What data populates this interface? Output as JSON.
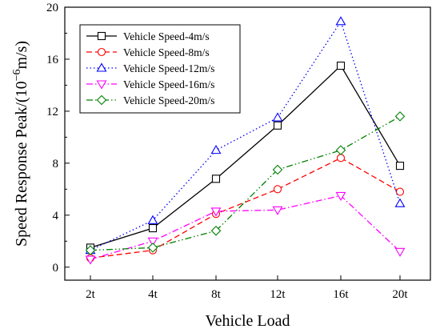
{
  "chart_data": {
    "type": "line",
    "xlabel": "Vehicle Load",
    "ylabel_main": "Speed Response Peak/(10",
    "ylabel_exp": "−6",
    "ylabel_tail": "m/s)",
    "categories": [
      "2t",
      "4t",
      "8t",
      "12t",
      "16t",
      "20t"
    ],
    "ylim": [
      -1,
      20
    ],
    "yticks": [
      0,
      4,
      8,
      12,
      16,
      20
    ],
    "ytick_labels": [
      "0",
      "4",
      "8",
      "12",
      "16",
      "20"
    ],
    "grid": false,
    "legend_position": "top-left",
    "series": [
      {
        "name": "Vehicle Speed-4m/s",
        "values": [
          1.5,
          3.0,
          6.8,
          10.9,
          15.5,
          7.8
        ],
        "color": "#000000",
        "dash": "solid",
        "marker": "square"
      },
      {
        "name": "Vehicle Speed-8m/s",
        "values": [
          0.7,
          1.3,
          4.1,
          6.0,
          8.4,
          5.8
        ],
        "color": "#ff0000",
        "dash": "dash",
        "marker": "circle"
      },
      {
        "name": "Vehicle Speed-12m/s",
        "values": [
          1.3,
          3.6,
          9.0,
          11.5,
          18.9,
          4.9
        ],
        "color": "#0000ff",
        "dash": "dot",
        "marker": "triangle-up"
      },
      {
        "name": "Vehicle Speed-16m/s",
        "values": [
          0.6,
          2.0,
          4.3,
          4.4,
          5.5,
          1.2
        ],
        "color": "#ff00ff",
        "dash": "dashdot",
        "marker": "triangle-down"
      },
      {
        "name": "Vehicle Speed-20m/s",
        "values": [
          1.3,
          1.5,
          2.8,
          7.5,
          9.0,
          11.6
        ],
        "color": "#008000",
        "dash": "dashdotdot",
        "marker": "diamond"
      }
    ]
  }
}
